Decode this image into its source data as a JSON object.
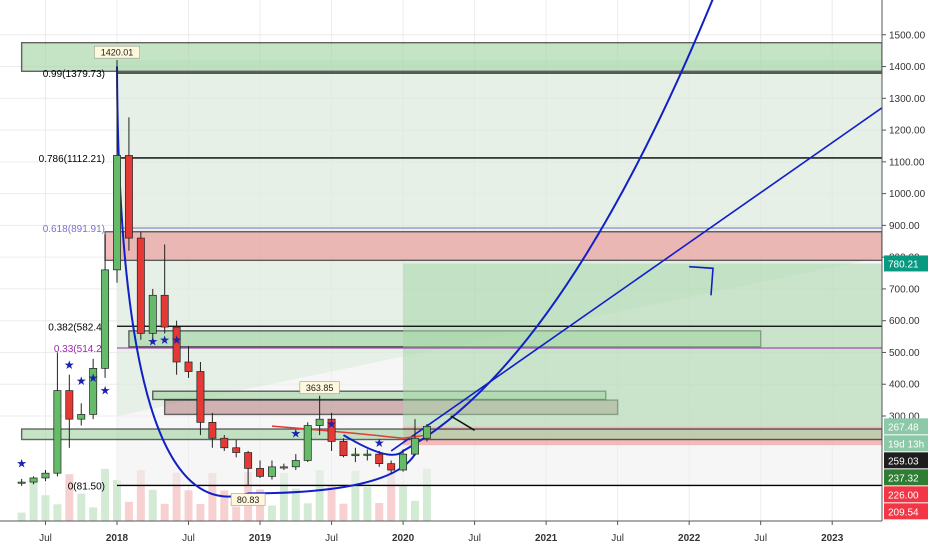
{
  "chart_data": {
    "type": "candlestick",
    "title": "",
    "y_axis": {
      "position": "right",
      "range": [
        150,
        1600
      ],
      "ticks": [
        300,
        400,
        500,
        600,
        700,
        800,
        900,
        1000,
        1100,
        1200,
        1300,
        1400,
        1500
      ],
      "tick_labels": [
        "300.00",
        "400.00",
        "500.00",
        "600.00",
        "700.00",
        "800.00",
        "900.00",
        "1000.00",
        "1100.00",
        "1200.00",
        "1300.00",
        "1400.00",
        "1500.00"
      ]
    },
    "x_axis": {
      "range": [
        "2017-05",
        "2023-07"
      ],
      "ticks": [
        {
          "date": "2017-07",
          "label": "Jul",
          "bold": false
        },
        {
          "date": "2018-01",
          "label": "2018",
          "bold": true
        },
        {
          "date": "2018-07",
          "label": "Jul",
          "bold": false
        },
        {
          "date": "2019-01",
          "label": "2019",
          "bold": true
        },
        {
          "date": "2019-07",
          "label": "Jul",
          "bold": false
        },
        {
          "date": "2020-01",
          "label": "2020",
          "bold": true
        },
        {
          "date": "2020-07",
          "label": "Jul",
          "bold": false
        },
        {
          "date": "2021-01",
          "label": "2021",
          "bold": true
        },
        {
          "date": "2021-07",
          "label": "Jul",
          "bold": false
        },
        {
          "date": "2022-01",
          "label": "2022",
          "bold": true
        },
        {
          "date": "2022-07",
          "label": "Jul",
          "bold": false
        },
        {
          "date": "2023-01",
          "label": "2023",
          "bold": true
        }
      ]
    },
    "price_labels": [
      {
        "text": "780.21",
        "value": 780.21,
        "bg": "#089981",
        "color": "#ffffff"
      },
      {
        "text": "267.48",
        "value": 267.48,
        "bg": "#8cc9a8",
        "color": "#ffffff"
      },
      {
        "text": "19d 13h",
        "value": 238,
        "bg": "#8cc9a8",
        "color": "#ffffff"
      },
      {
        "text": "259.03",
        "value": 259.03,
        "bg": "#1e1e1e",
        "color": "#ffffff"
      },
      {
        "text": "237.32",
        "value": 237.32,
        "bg": "#2e7d32",
        "color": "#ffffff"
      },
      {
        "text": "226.00",
        "value": 226.0,
        "bg": "#f23645",
        "color": "#ffffff"
      },
      {
        "text": "209.54",
        "value": 209.54,
        "bg": "#f23645",
        "color": "#ffffff"
      }
    ],
    "fib_levels": [
      {
        "label": "0.99(1379.73)",
        "value": 1379.73,
        "color": "#000000"
      },
      {
        "label": "0.786(1112.21)",
        "value": 1112.21,
        "color": "#000000"
      },
      {
        "label": "0.618(891.91)",
        "value": 891.91,
        "color": "#7b6fcf"
      },
      {
        "label": "0.382(582.4)",
        "value": 582.4,
        "color": "#000000"
      },
      {
        "label": "0.33(514.2)",
        "value": 514.2,
        "color": "#9c27b0"
      },
      {
        "label": "0(81.50)",
        "value": 81.5,
        "color": "#000000"
      }
    ],
    "annotations": [
      {
        "text": "1420.01",
        "date": "2018-01",
        "value": 1420.01
      },
      {
        "text": "363.85",
        "date": "2019-06",
        "value": 363.85
      },
      {
        "text": "80.83",
        "date": "2018-12",
        "value": 80.83
      }
    ],
    "zones": [
      {
        "kind": "supply",
        "from": "2017-05",
        "to": "2023-07",
        "top": 1475,
        "bottom": 1385,
        "fill": "#a5d6a7"
      },
      {
        "kind": "resistance",
        "from": "2017-12",
        "to": "2023-07",
        "top": 880,
        "bottom": 790,
        "fill": "#ef9a9a"
      },
      {
        "kind": "support",
        "from": "2018-02",
        "to": "2022-07",
        "top": 568,
        "bottom": 518,
        "fill": "#a5d6a7"
      },
      {
        "kind": "support",
        "from": "2018-04",
        "to": "2021-06",
        "top": 378,
        "bottom": 352,
        "fill": "#a5d6a7"
      },
      {
        "kind": "resistance",
        "from": "2018-05",
        "to": "2021-07",
        "top": 350,
        "bottom": 305,
        "fill": "#bc8f8f"
      },
      {
        "kind": "target",
        "from": "2020-01",
        "to": "2023-07",
        "top": 780,
        "bottom": 267,
        "fill": "#a5d6a7"
      },
      {
        "kind": "stop",
        "from": "2020-01",
        "to": "2023-07",
        "top": 267,
        "bottom": 208,
        "fill": "#ef9a9a"
      },
      {
        "kind": "base",
        "from": "2017-05",
        "to": "2023-07",
        "top": 259,
        "bottom": 226,
        "fill": "#a5d6a7"
      }
    ],
    "candles": [
      {
        "date": "2017-05",
        "o": 90,
        "h": 102,
        "l": 80,
        "c": 92
      },
      {
        "date": "2017-06",
        "o": 92,
        "h": 110,
        "l": 85,
        "c": 105
      },
      {
        "date": "2017-07",
        "o": 105,
        "h": 130,
        "l": 95,
        "c": 120
      },
      {
        "date": "2017-08",
        "o": 120,
        "h": 500,
        "l": 110,
        "c": 380
      },
      {
        "date": "2017-09",
        "o": 380,
        "h": 430,
        "l": 200,
        "c": 290
      },
      {
        "date": "2017-10",
        "o": 290,
        "h": 340,
        "l": 270,
        "c": 305
      },
      {
        "date": "2017-11",
        "o": 305,
        "h": 480,
        "l": 290,
        "c": 450
      },
      {
        "date": "2017-12",
        "o": 450,
        "h": 870,
        "l": 420,
        "c": 760
      },
      {
        "date": "2018-01",
        "o": 760,
        "h": 1420.01,
        "l": 720,
        "c": 1120
      },
      {
        "date": "2018-02",
        "o": 1120,
        "h": 1240,
        "l": 820,
        "c": 860
      },
      {
        "date": "2018-03",
        "o": 860,
        "h": 880,
        "l": 540,
        "c": 560
      },
      {
        "date": "2018-04",
        "o": 560,
        "h": 700,
        "l": 530,
        "c": 680
      },
      {
        "date": "2018-05",
        "o": 680,
        "h": 840,
        "l": 560,
        "c": 580
      },
      {
        "date": "2018-06",
        "o": 580,
        "h": 600,
        "l": 430,
        "c": 470
      },
      {
        "date": "2018-07",
        "o": 470,
        "h": 520,
        "l": 420,
        "c": 440
      },
      {
        "date": "2018-08",
        "o": 440,
        "h": 470,
        "l": 240,
        "c": 280
      },
      {
        "date": "2018-09",
        "o": 280,
        "h": 310,
        "l": 200,
        "c": 230
      },
      {
        "date": "2018-10",
        "o": 230,
        "h": 240,
        "l": 190,
        "c": 200
      },
      {
        "date": "2018-11",
        "o": 200,
        "h": 225,
        "l": 170,
        "c": 185
      },
      {
        "date": "2018-12",
        "o": 185,
        "h": 190,
        "l": 80.83,
        "c": 135
      },
      {
        "date": "2019-01",
        "o": 135,
        "h": 160,
        "l": 105,
        "c": 110
      },
      {
        "date": "2019-02",
        "o": 110,
        "h": 160,
        "l": 100,
        "c": 140
      },
      {
        "date": "2019-03",
        "o": 140,
        "h": 150,
        "l": 130,
        "c": 140
      },
      {
        "date": "2019-04",
        "o": 140,
        "h": 180,
        "l": 130,
        "c": 160
      },
      {
        "date": "2019-05",
        "o": 160,
        "h": 280,
        "l": 155,
        "c": 270
      },
      {
        "date": "2019-06",
        "o": 270,
        "h": 363.85,
        "l": 240,
        "c": 290
      },
      {
        "date": "2019-07",
        "o": 290,
        "h": 310,
        "l": 190,
        "c": 220
      },
      {
        "date": "2019-08",
        "o": 220,
        "h": 230,
        "l": 170,
        "c": 175
      },
      {
        "date": "2019-09",
        "o": 175,
        "h": 200,
        "l": 155,
        "c": 180
      },
      {
        "date": "2019-10",
        "o": 180,
        "h": 195,
        "l": 160,
        "c": 180
      },
      {
        "date": "2019-11",
        "o": 180,
        "h": 190,
        "l": 140,
        "c": 150
      },
      {
        "date": "2019-12",
        "o": 150,
        "h": 160,
        "l": 120,
        "c": 130
      },
      {
        "date": "2020-01",
        "o": 130,
        "h": 195,
        "l": 125,
        "c": 180
      },
      {
        "date": "2020-02",
        "o": 180,
        "h": 290,
        "l": 175,
        "c": 230
      },
      {
        "date": "2020-03",
        "o": 230,
        "h": 275,
        "l": 220,
        "c": 267.48
      }
    ],
    "stars": [
      {
        "date": "2017-05",
        "value": 150
      },
      {
        "date": "2017-09",
        "value": 460
      },
      {
        "date": "2017-10",
        "value": 410
      },
      {
        "date": "2017-11",
        "value": 420
      },
      {
        "date": "2017-12",
        "value": 380
      },
      {
        "date": "2018-04",
        "value": 535
      },
      {
        "date": "2018-05",
        "value": 540
      },
      {
        "date": "2018-06",
        "value": 540
      },
      {
        "date": "2019-04",
        "value": 245
      },
      {
        "date": "2019-07",
        "value": 275
      },
      {
        "date": "2019-11",
        "value": 215
      }
    ],
    "colors": {
      "up": "#66bb6a",
      "down": "#e53935",
      "wick": "#222222",
      "star": "#1a23b0",
      "curve": "#1020c8",
      "ma": "#e53935",
      "grid": "#ececec"
    }
  }
}
